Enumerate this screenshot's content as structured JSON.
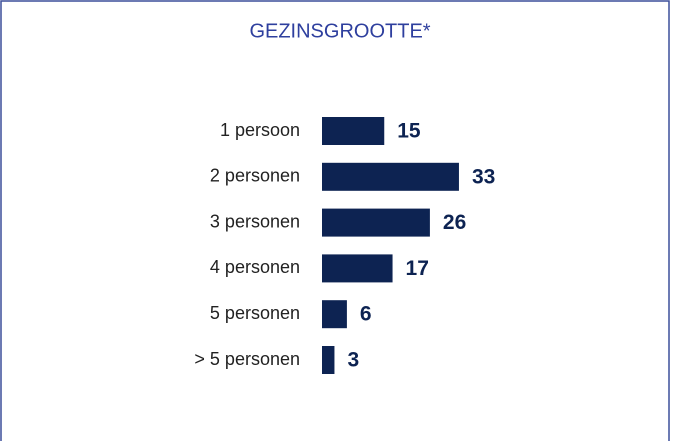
{
  "chart_data": {
    "type": "bar",
    "orientation": "horizontal",
    "title": "GEZINSGROOTTE*",
    "categories": [
      "1 persoon",
      "2 personen",
      "3 personen",
      "4 personen",
      "5 personen",
      "> 5 personen"
    ],
    "values": [
      15,
      33,
      26,
      17,
      6,
      3
    ],
    "color": "#0d2352"
  }
}
